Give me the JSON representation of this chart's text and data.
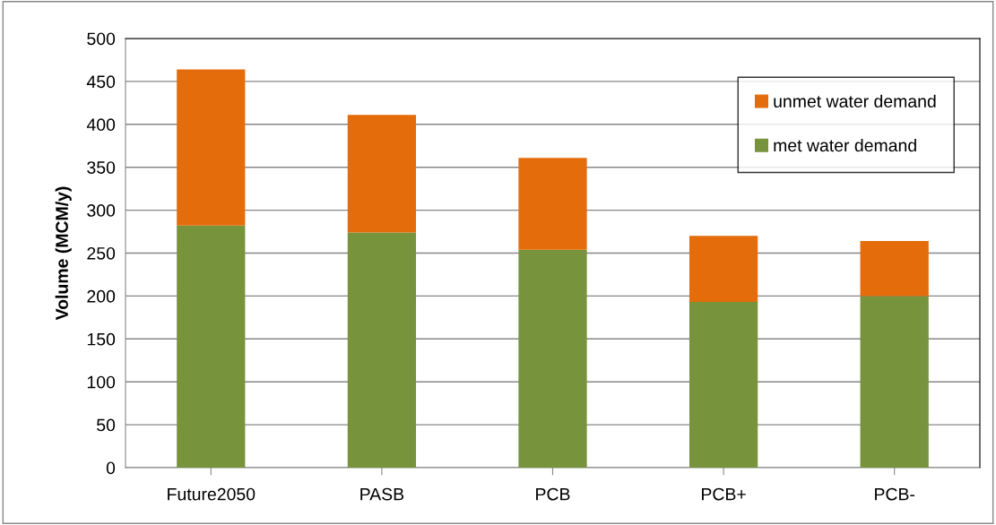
{
  "chart_data": {
    "type": "bar",
    "stacked": true,
    "ylabel": "Volume (MCM/y)",
    "categories": [
      "Future2050",
      "PASB",
      "PCB",
      "PCB+",
      "PCB-"
    ],
    "series": [
      {
        "name": "met water demand",
        "color": "#77933c",
        "values": [
          282,
          274,
          254,
          193,
          200
        ]
      },
      {
        "name": "unmet water demand",
        "color": "#e46c0a",
        "values": [
          182,
          137,
          107,
          77,
          64
        ]
      }
    ],
    "ylim": [
      0,
      500
    ],
    "yticks": [
      0,
      50,
      100,
      150,
      200,
      250,
      300,
      350,
      400,
      450,
      500
    ],
    "grid": "y",
    "legend": "top right"
  }
}
